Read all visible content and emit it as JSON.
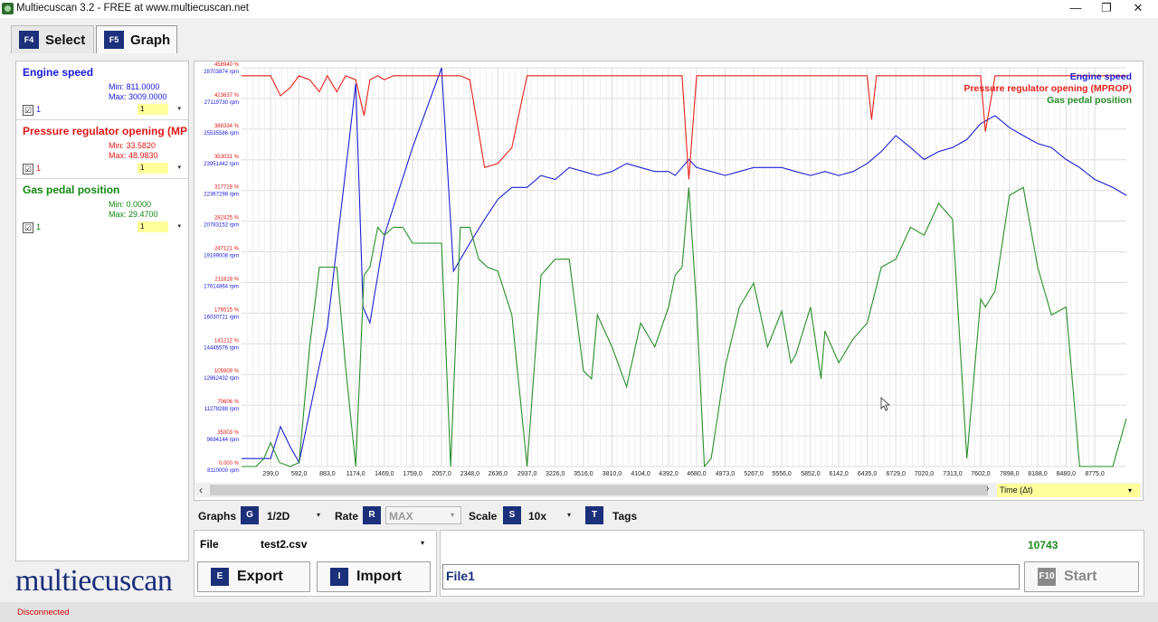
{
  "window": {
    "title": "Multiecuscan 3.2 - FREE at www.multiecuscan.net",
    "minimize": "—",
    "maximize": "❐",
    "close": "✕"
  },
  "tabs": [
    {
      "key": "F4",
      "label": "Select"
    },
    {
      "key": "F5",
      "label": "Graph"
    }
  ],
  "signals": [
    {
      "name": "Engine speed",
      "min_label": "Min: 811.0000",
      "max_label": "Max: 3009.0000",
      "checked": "☑",
      "num": "1",
      "drop": "1",
      "color": "#1a1adc"
    },
    {
      "name": "Pressure regulator opening (MPROP)",
      "min_label": "Min: 33.5820",
      "max_label": "Max: 48.9830",
      "checked": "☑",
      "num": "1",
      "drop": "1",
      "color": "#e01818"
    },
    {
      "name": "Gas pedal position",
      "min_label": "Min: 0.0000",
      "max_label": "Max: 29.4700",
      "checked": "☑",
      "num": "1",
      "drop": "1",
      "color": "#138a13"
    }
  ],
  "logo": "multiecuscan",
  "chart_data": {
    "type": "line",
    "x_ticks": [
      "299,0",
      "592,0",
      "883,0",
      "1174,0",
      "1469,0",
      "1759,0",
      "2057,0",
      "2348,0",
      "2636,0",
      "2937,0",
      "3226,0",
      "3516,0",
      "3810,0",
      "4104,0",
      "4392,0",
      "4680,0",
      "4973,0",
      "5267,0",
      "5556,0",
      "5852,0",
      "6142,0",
      "6435,0",
      "6729,0",
      "7020,0",
      "7313,0",
      "7602,0",
      "7898,0",
      "8188,0",
      "8480,0",
      "8775,0"
    ],
    "y_ticks_red": [
      "458940 %",
      "423637 %",
      "388334 %",
      "353031 %",
      "317728 %",
      "282425 %",
      "247121 %",
      "211818 %",
      "176515 %",
      "141212 %",
      "105909 %",
      "70606 %",
      "35303 %",
      "0.000 %"
    ],
    "y_ticks_blue": [
      "28703874 rpm",
      "27119730 rpm",
      "25535586 rpm",
      "23951442 rpm",
      "22367298 rpm",
      "20783152 rpm",
      "19199008 rpm",
      "17614864 rpm",
      "16030721 rpm",
      "14446576 rpm",
      "12862432 rpm",
      "11278288 rpm",
      "9694144 rpm",
      "8110000 rpm"
    ],
    "xlim": [
      0,
      9100
    ],
    "ylim": [
      0,
      1
    ],
    "grid": true,
    "legend_position": "top-right",
    "series": [
      {
        "name": "Engine speed",
        "color": "#1f1fd6",
        "x": [
          0,
          299,
          400,
          500,
          592,
          883,
          1174,
          1250,
          1320,
          1469,
          1759,
          2057,
          2180,
          2348,
          2500,
          2636,
          2780,
          2937,
          3080,
          3226,
          3370,
          3516,
          3660,
          3810,
          3960,
          4104,
          4250,
          4392,
          4460,
          4530,
          4600,
          4680,
          4830,
          4973,
          5120,
          5267,
          5410,
          5556,
          5700,
          5852,
          6000,
          6142,
          6290,
          6435,
          6580,
          6729,
          6880,
          7020,
          7170,
          7313,
          7460,
          7602,
          7750,
          7898,
          8040,
          8188,
          8330,
          8480,
          8620,
          8775,
          8960,
          9100
        ],
        "y": [
          0.02,
          0.02,
          0.1,
          0.05,
          0.01,
          0.35,
          0.96,
          0.4,
          0.36,
          0.58,
          0.8,
          1.0,
          0.49,
          0.56,
          0.62,
          0.67,
          0.7,
          0.7,
          0.73,
          0.72,
          0.75,
          0.74,
          0.73,
          0.74,
          0.76,
          0.75,
          0.74,
          0.74,
          0.73,
          0.75,
          0.77,
          0.75,
          0.74,
          0.73,
          0.74,
          0.75,
          0.75,
          0.75,
          0.74,
          0.73,
          0.74,
          0.73,
          0.74,
          0.76,
          0.79,
          0.83,
          0.8,
          0.77,
          0.79,
          0.8,
          0.82,
          0.86,
          0.88,
          0.85,
          0.83,
          0.81,
          0.8,
          0.77,
          0.75,
          0.72,
          0.7,
          0.68
        ]
      },
      {
        "name": "Pressure regulator opening (MPROP)",
        "color": "#e8221c",
        "x": [
          0,
          150,
          299,
          400,
          500,
          592,
          700,
          800,
          883,
          980,
          1070,
          1174,
          1260,
          1320,
          1400,
          1469,
          1560,
          1659,
          1759,
          1900,
          2057,
          2150,
          2250,
          2348,
          2500,
          2636,
          2780,
          2937,
          3080,
          3226,
          3370,
          3516,
          3660,
          3810,
          3960,
          4104,
          4250,
          4392,
          4530,
          4600,
          4680,
          4830,
          4973,
          5120,
          5267,
          5410,
          5556,
          5700,
          5852,
          6000,
          6142,
          6290,
          6435,
          6480,
          6530,
          6729,
          6880,
          7020,
          7170,
          7313,
          7460,
          7602,
          7650,
          7750,
          7898,
          8040,
          8188,
          8330,
          8480,
          8620,
          8775,
          8960,
          9100
        ],
        "y": [
          0.98,
          0.98,
          0.98,
          0.93,
          0.95,
          0.98,
          0.97,
          0.94,
          0.98,
          0.94,
          0.98,
          0.97,
          0.88,
          0.97,
          0.98,
          0.97,
          0.98,
          0.98,
          0.98,
          0.98,
          0.98,
          0.98,
          0.98,
          0.97,
          0.75,
          0.76,
          0.8,
          0.98,
          0.98,
          0.98,
          0.98,
          0.98,
          0.98,
          0.98,
          0.98,
          0.98,
          0.98,
          0.98,
          0.98,
          0.72,
          0.98,
          0.98,
          0.98,
          0.98,
          0.98,
          0.98,
          0.98,
          0.98,
          0.98,
          0.98,
          0.98,
          0.98,
          0.98,
          0.87,
          0.98,
          0.98,
          0.98,
          0.98,
          0.98,
          0.98,
          0.98,
          0.98,
          0.84,
          0.98,
          0.98,
          0.98,
          0.98,
          0.98,
          0.98,
          0.98,
          0.98,
          0.98,
          0.98
        ]
      },
      {
        "name": "Gas pedal position",
        "color": "#2a8f2a",
        "x": [
          0,
          150,
          230,
          299,
          390,
          500,
          592,
          700,
          800,
          883,
          980,
          1070,
          1174,
          1260,
          1320,
          1400,
          1469,
          1560,
          1659,
          1759,
          1900,
          2057,
          2150,
          2250,
          2348,
          2440,
          2530,
          2636,
          2780,
          2937,
          3080,
          3226,
          3370,
          3516,
          3600,
          3660,
          3810,
          3960,
          4104,
          4250,
          4392,
          4460,
          4530,
          4600,
          4680,
          4760,
          4830,
          4973,
          5120,
          5267,
          5410,
          5556,
          5650,
          5700,
          5852,
          5960,
          6000,
          6142,
          6290,
          6435,
          6580,
          6729,
          6880,
          7020,
          7170,
          7313,
          7460,
          7602,
          7650,
          7750,
          7898,
          8040,
          8188,
          8330,
          8480,
          8620,
          8775,
          8960,
          9100
        ],
        "y": [
          0.0,
          0.0,
          0.02,
          0.06,
          0.01,
          0.0,
          0.01,
          0.3,
          0.5,
          0.5,
          0.5,
          0.25,
          0.0,
          0.48,
          0.5,
          0.6,
          0.58,
          0.6,
          0.6,
          0.56,
          0.56,
          0.56,
          0.0,
          0.6,
          0.6,
          0.52,
          0.5,
          0.49,
          0.38,
          0.0,
          0.48,
          0.52,
          0.52,
          0.24,
          0.22,
          0.38,
          0.3,
          0.2,
          0.36,
          0.3,
          0.4,
          0.48,
          0.5,
          0.7,
          0.4,
          0.0,
          0.02,
          0.25,
          0.4,
          0.46,
          0.3,
          0.39,
          0.26,
          0.28,
          0.4,
          0.22,
          0.34,
          0.26,
          0.32,
          0.36,
          0.5,
          0.52,
          0.6,
          0.58,
          0.66,
          0.62,
          0.02,
          0.42,
          0.4,
          0.44,
          0.68,
          0.7,
          0.5,
          0.38,
          0.4,
          0.0,
          0.0,
          0.0,
          0.12
        ]
      }
    ]
  },
  "legend": [
    "Engine speed",
    "Pressure regulator opening (MPROP)",
    "Gas pedal position"
  ],
  "scroll": {
    "left": "‹",
    "right": "›"
  },
  "time_axis": {
    "label": "Time (Δt)",
    "arrow": "▾"
  },
  "controls": {
    "graphs_label": "Graphs",
    "graphs_key": "G",
    "graphs_value": "1/2D",
    "rate_label": "Rate",
    "rate_key": "R",
    "rate_value": "MAX",
    "scale_label": "Scale",
    "scale_key": "S",
    "scale_value": "10x",
    "tags_key": "T",
    "tags_label": "Tags",
    "arrow": "▾"
  },
  "file": {
    "label": "File",
    "value": "test2.csv",
    "arrow": "▾"
  },
  "buttons": {
    "export_key": "E",
    "export_label": "Export",
    "import_key": "I",
    "import_label": "Import",
    "start_key": "F10",
    "start_label": "Start"
  },
  "output": {
    "file_field": "File1",
    "count": "10743"
  },
  "status": {
    "text": "Disconnected"
  }
}
